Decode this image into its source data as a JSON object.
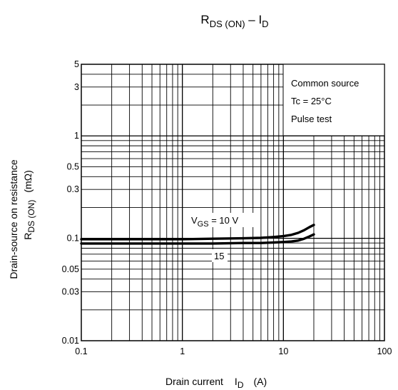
{
  "chart_data": {
    "type": "line",
    "title": {
      "main": "R",
      "main_sub": "DS (ON)",
      "dash": " – I",
      "dash_sub": "D"
    },
    "xlabel": {
      "text": "Drain current",
      "sym": "I",
      "sym_sub": "D",
      "unit": "(A)"
    },
    "ylabel": {
      "line1": "Drain-source on resistance",
      "sym": "R",
      "sym_sub": "DS (ON)",
      "unit": "(mΩ)"
    },
    "x_scale": "log",
    "y_scale": "log",
    "xlim": [
      0.1,
      100
    ],
    "ylim": [
      0.01,
      5
    ],
    "grid": true,
    "x_ticks": [
      {
        "value": 0.1,
        "label": "0.1"
      },
      {
        "value": 1,
        "label": "1"
      },
      {
        "value": 10,
        "label": "10"
      },
      {
        "value": 100,
        "label": "100"
      }
    ],
    "y_ticks": [
      {
        "value": 0.01,
        "label": "0.01"
      },
      {
        "value": 0.03,
        "label": "0.03"
      },
      {
        "value": 0.05,
        "label": "0.05"
      },
      {
        "value": 0.1,
        "label": "0.1"
      },
      {
        "value": 0.3,
        "label": "0.3"
      },
      {
        "value": 0.5,
        "label": "0.5"
      },
      {
        "value": 1,
        "label": "1"
      },
      {
        "value": 3,
        "label": "3"
      },
      {
        "value": 5,
        "label": "5"
      }
    ],
    "series": [
      {
        "name": "10 V",
        "x": [
          0.1,
          0.5,
          1,
          2,
          4,
          6,
          8,
          10,
          12,
          14,
          16,
          18,
          20
        ],
        "y": [
          0.098,
          0.098,
          0.098,
          0.099,
          0.1,
          0.101,
          0.103,
          0.105,
          0.108,
          0.113,
          0.12,
          0.128,
          0.135
        ]
      },
      {
        "name": "15",
        "x": [
          0.1,
          0.5,
          1,
          2,
          4,
          6,
          8,
          10,
          12,
          14,
          16,
          18,
          20
        ],
        "y": [
          0.089,
          0.089,
          0.089,
          0.089,
          0.09,
          0.09,
          0.091,
          0.092,
          0.093,
          0.095,
          0.099,
          0.104,
          0.109
        ]
      }
    ],
    "annotations": {
      "vgs_prefix": "V",
      "vgs_sub": "GS",
      "vgs_value": " = 10 V",
      "label_15": "15"
    },
    "legend": {
      "position": "top-right",
      "lines": [
        "Common source",
        "Tc = 25°C",
        "Pulse test"
      ]
    }
  }
}
